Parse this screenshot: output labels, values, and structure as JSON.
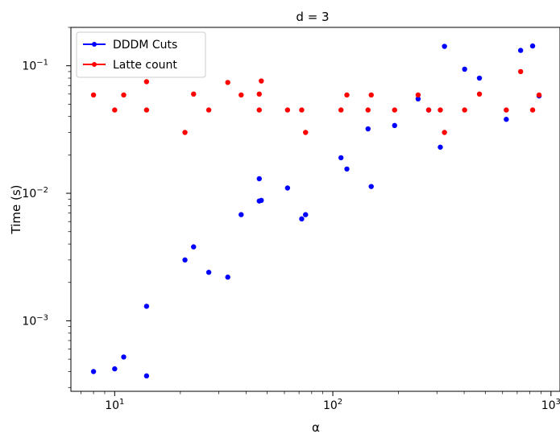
{
  "chart_data": {
    "type": "scatter",
    "title": "d = 3",
    "xlabel": "α",
    "ylabel": "Time (s)",
    "xscale": "log",
    "yscale": "log",
    "xlim": [
      6.3,
      1100
    ],
    "ylim": [
      0.00028,
      0.2
    ],
    "grid": false,
    "legend_position": "top-left",
    "x_ticks": [
      {
        "value": 10,
        "base": "10",
        "exp": "1"
      },
      {
        "value": 100,
        "base": "10",
        "exp": "2"
      },
      {
        "value": 1000,
        "base": "10",
        "exp": "3"
      }
    ],
    "y_ticks": [
      {
        "value": 0.001,
        "base": "10",
        "exp": "−3"
      },
      {
        "value": 0.01,
        "base": "10",
        "exp": "−2"
      },
      {
        "value": 0.1,
        "base": "10",
        "exp": "−1"
      }
    ],
    "series": [
      {
        "name": "DDDM Cuts",
        "color": "#0000ff",
        "points": [
          [
            8,
            0.0004
          ],
          [
            10,
            0.00042
          ],
          [
            11,
            0.00052
          ],
          [
            14,
            0.00037
          ],
          [
            14,
            0.0013
          ],
          [
            21,
            0.003
          ],
          [
            23,
            0.0038
          ],
          [
            27,
            0.0024
          ],
          [
            33,
            0.0022
          ],
          [
            38,
            0.0068
          ],
          [
            46,
            0.0087
          ],
          [
            46,
            0.013
          ],
          [
            47,
            0.0088
          ],
          [
            62,
            0.011
          ],
          [
            72,
            0.0063
          ],
          [
            75,
            0.0068
          ],
          [
            109,
            0.019
          ],
          [
            116,
            0.0155
          ],
          [
            145,
            0.032
          ],
          [
            150,
            0.0113
          ],
          [
            192,
            0.034
          ],
          [
            246,
            0.055
          ],
          [
            275,
            0.045
          ],
          [
            311,
            0.023
          ],
          [
            325,
            0.142
          ],
          [
            402,
            0.094
          ],
          [
            470,
            0.08
          ],
          [
            624,
            0.038
          ],
          [
            726,
            0.132
          ],
          [
            824,
            0.143
          ],
          [
            882,
            0.058
          ]
        ]
      },
      {
        "name": "Latte count",
        "color": "#ff0000",
        "points": [
          [
            8,
            0.059
          ],
          [
            10,
            0.045
          ],
          [
            11,
            0.059
          ],
          [
            14,
            0.075
          ],
          [
            14,
            0.045
          ],
          [
            21,
            0.03
          ],
          [
            23,
            0.06
          ],
          [
            27,
            0.045
          ],
          [
            33,
            0.074
          ],
          [
            38,
            0.059
          ],
          [
            46,
            0.045
          ],
          [
            46,
            0.06
          ],
          [
            47,
            0.076
          ],
          [
            62,
            0.045
          ],
          [
            72,
            0.045
          ],
          [
            75,
            0.03
          ],
          [
            109,
            0.045
          ],
          [
            116,
            0.059
          ],
          [
            145,
            0.045
          ],
          [
            150,
            0.059
          ],
          [
            192,
            0.045
          ],
          [
            246,
            0.059
          ],
          [
            275,
            0.045
          ],
          [
            311,
            0.045
          ],
          [
            325,
            0.03
          ],
          [
            402,
            0.045
          ],
          [
            470,
            0.06
          ],
          [
            624,
            0.045
          ],
          [
            726,
            0.09
          ],
          [
            824,
            0.045
          ],
          [
            882,
            0.059
          ]
        ]
      }
    ]
  }
}
